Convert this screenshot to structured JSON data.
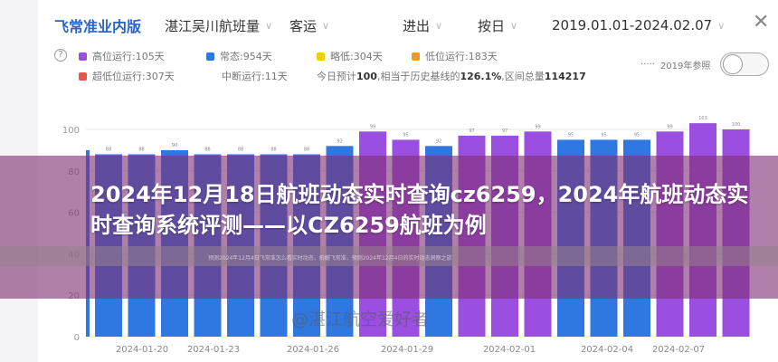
{
  "header": {
    "brand": "飞常准业内版",
    "airport": "湛江吴川航班量",
    "type": "客运",
    "direction": "进出",
    "granularity": "按日",
    "date_range": "2019.01.01-2024.02.07"
  },
  "legend": {
    "items": [
      {
        "label": "高位运行:105天",
        "color": "#9b4fe0"
      },
      {
        "label": "常态:954天",
        "color": "#2f78e2"
      },
      {
        "label": "略低:304天",
        "color": "#f2d000"
      },
      {
        "label": "低位运行:183天",
        "color": "#f39a1b"
      },
      {
        "label": "超低位运行:307天",
        "color": "#e2574c"
      }
    ],
    "interrupted": "中断运行:11天",
    "summary_prefix": "今日预计",
    "summary_today": "100",
    "summary_mid": ",相当于历史基线的",
    "summary_pct": "126.1%",
    "summary_mid2": ",区间总量",
    "summary_total": "114217",
    "reference_label": "2019年参照"
  },
  "chart_data": {
    "type": "bar",
    "ylim": [
      0,
      100
    ],
    "yticks": [
      0,
      20,
      40,
      60,
      80,
      100
    ],
    "xtick_labels": [
      "2024-01-20",
      "2024-01-23",
      "2024-01-26",
      "2024-01-29",
      "2024-02-01",
      "2024-02-04",
      "2024-02-07"
    ],
    "values": [
      88,
      88,
      90,
      88,
      88,
      88,
      88,
      92,
      99,
      95,
      92,
      97,
      97,
      99,
      95,
      95,
      95,
      99,
      103,
      100
    ],
    "status": [
      "常态",
      "常态",
      "常态",
      "常态",
      "常态",
      "常态",
      "常态",
      "常态",
      "高位运行",
      "高位运行",
      "常态",
      "高位运行",
      "高位运行",
      "高位运行",
      "常态",
      "常态",
      "常态",
      "高位运行",
      "高位运行",
      "高位运行"
    ],
    "grid": true
  },
  "overlay": {
    "title": "2024年12月18日航班动态实时查询cz6259，2024年航班动态实时查询系统评测——以CZ6259航班为例",
    "subtitle": "预测2024年12月4日飞常准怎么看实时动态，拍樾飞常准，预测2024年12月4日的实时动态洞察之旅",
    "watermark": "@湛江航空爱好者"
  }
}
